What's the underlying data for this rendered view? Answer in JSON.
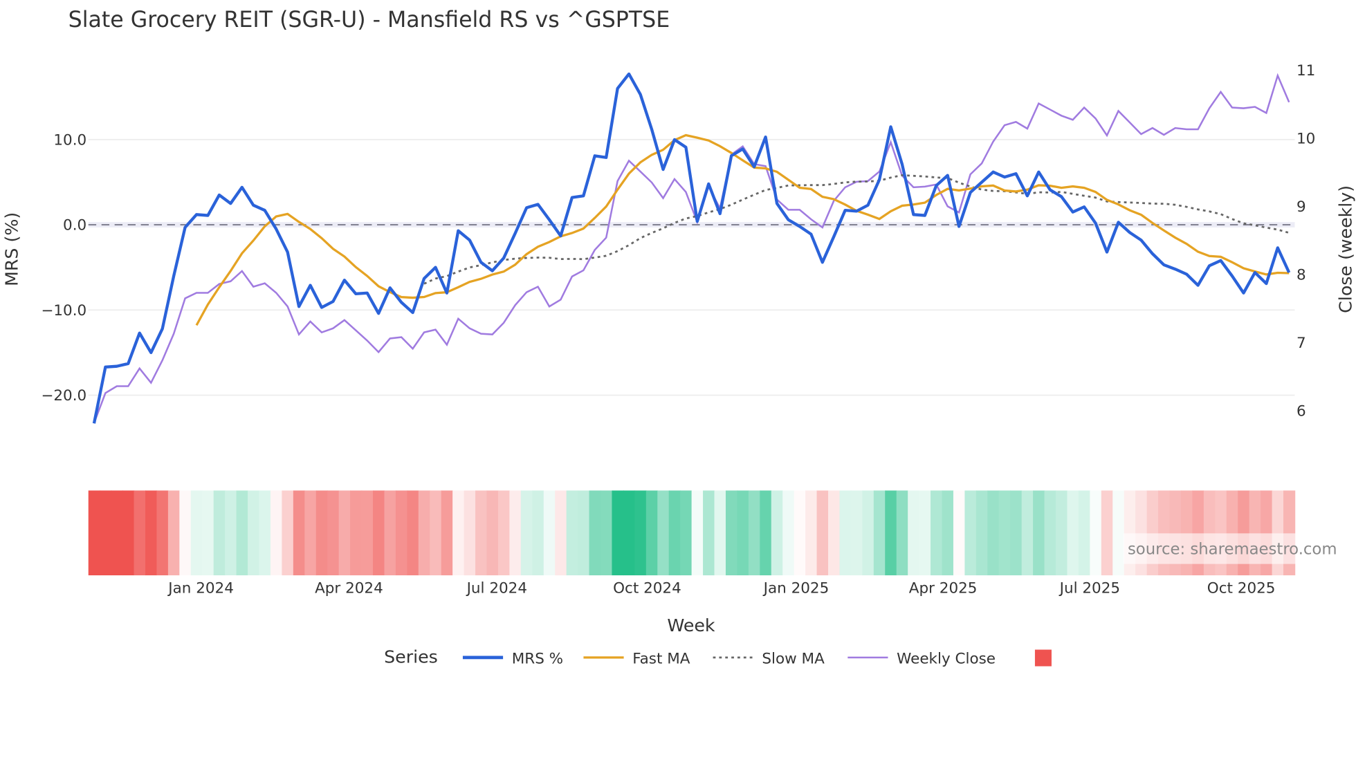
{
  "chart_data": {
    "type": "line",
    "title": "Slate Grocery REIT (SGR-U) - Mansfield RS vs ^GSPTSE",
    "xlabel": "Week",
    "ylabel": "MRS (%)",
    "y2label": "Close (weekly)",
    "ylim": [
      -23.9,
      19.2
    ],
    "y2lim": [
      5.74,
      11.13
    ],
    "y_ticks": [
      10,
      0,
      -10,
      -20
    ],
    "y_tick_labels": [
      "10.0",
      "0.0",
      "−10.0",
      "−20.0"
    ],
    "y2_ticks": [
      11,
      10,
      9,
      8,
      7,
      6
    ],
    "y2_tick_labels": [
      "11",
      "10",
      "9",
      "8",
      "7",
      "6"
    ],
    "x_range_weeks": [
      -0.5,
      105.5
    ],
    "x_ticks": [
      {
        "label": "Jan 2024",
        "week": 9.4
      },
      {
        "label": "Apr 2024",
        "week": 22.4
      },
      {
        "label": "Jul 2024",
        "week": 35.4
      },
      {
        "label": "Oct 2024",
        "week": 48.6
      },
      {
        "label": "Jan 2025",
        "week": 61.7
      },
      {
        "label": "Apr 2025",
        "week": 74.6
      },
      {
        "label": "Jul 2025",
        "week": 87.5
      },
      {
        "label": "Oct 2025",
        "week": 100.8
      }
    ],
    "zero_line": 0,
    "grid": true,
    "legend": {
      "title": "Series",
      "placement": "bottom-center",
      "items": [
        "MRS %",
        "Fast MA",
        "Slow MA",
        "Weekly Close",
        ""
      ]
    },
    "fast_ma_window": 10,
    "slow_ma_window": 30,
    "series": [
      {
        "name": "MRS %",
        "axis": "left",
        "values": [
          -23.3,
          -16.7,
          -16.6,
          -16.3,
          -12.7,
          -15.0,
          -12.2,
          -6.0,
          -0.3,
          1.2,
          1.1,
          3.5,
          2.5,
          4.4,
          2.3,
          1.7,
          -0.5,
          -3.2,
          -9.6,
          -7.1,
          -9.7,
          -9.0,
          -6.5,
          -8.1,
          -8.0,
          -10.4,
          -7.4,
          -9.1,
          -10.3,
          -6.3,
          -5.0,
          -8.0,
          -0.7,
          -1.8,
          -4.4,
          -5.4,
          -3.9,
          -1.0,
          2.0,
          2.4,
          0.6,
          -1.3,
          3.2,
          3.4,
          8.1,
          7.9,
          16.0,
          17.7,
          15.3,
          11.2,
          6.5,
          10.0,
          9.1,
          0.4,
          4.8,
          1.3,
          8.1,
          8.9,
          6.8,
          10.3,
          2.5,
          0.6,
          -0.2,
          -1.1,
          -4.4,
          -1.4,
          1.7,
          1.6,
          2.3,
          5.3,
          11.5,
          7.1,
          1.2,
          1.1,
          4.6,
          5.8,
          -0.2,
          3.8,
          5.0,
          6.2,
          5.6,
          6.0,
          3.4,
          6.2,
          4.1,
          3.3,
          1.5,
          2.1,
          0.2,
          -3.2,
          0.3,
          -0.9,
          -1.8,
          -3.4,
          -4.7,
          -5.2,
          -5.8,
          -7.1,
          -4.8,
          -4.2,
          -6.0,
          -8.0,
          -5.6,
          -6.9,
          -2.7,
          -5.6
        ]
      },
      {
        "name": "Weekly Close",
        "axis": "right",
        "values": [
          5.82,
          6.26,
          6.36,
          6.36,
          6.62,
          6.41,
          6.74,
          7.13,
          7.65,
          7.73,
          7.73,
          7.86,
          7.9,
          8.05,
          7.82,
          7.87,
          7.73,
          7.53,
          7.12,
          7.31,
          7.15,
          7.21,
          7.33,
          7.18,
          7.03,
          6.86,
          7.06,
          7.08,
          6.91,
          7.15,
          7.19,
          6.97,
          7.35,
          7.21,
          7.13,
          7.12,
          7.29,
          7.55,
          7.74,
          7.82,
          7.53,
          7.63,
          7.97,
          8.06,
          8.36,
          8.54,
          9.37,
          9.67,
          9.51,
          9.35,
          9.12,
          9.4,
          9.21,
          8.77,
          9.29,
          8.97,
          9.76,
          9.88,
          9.62,
          9.59,
          9.1,
          8.95,
          8.95,
          8.81,
          8.69,
          9.08,
          9.28,
          9.36,
          9.37,
          9.51,
          9.94,
          9.45,
          9.28,
          9.29,
          9.32,
          9.0,
          8.91,
          9.47,
          9.63,
          9.95,
          10.19,
          10.24,
          10.14,
          10.51,
          10.42,
          10.33,
          10.27,
          10.45,
          10.29,
          10.04,
          10.4,
          10.23,
          10.06,
          10.15,
          10.05,
          10.15,
          10.13,
          10.13,
          10.44,
          10.68,
          10.45,
          10.44,
          10.46,
          10.37,
          10.92,
          10.53
        ]
      }
    ],
    "colors": {
      "mrs": "#2a62d9",
      "fast_ma": "#e5a323",
      "slow_ma": "#666666",
      "weekly_close": "#a07be0",
      "heat_negative": "#ef5350",
      "heat_positive": "#26c08a",
      "zero_line": "#7a7a8a",
      "grid": "#eeeeee"
    },
    "heatmap_scale_abs": 16,
    "source_note": "source: sharemaestro.com"
  }
}
